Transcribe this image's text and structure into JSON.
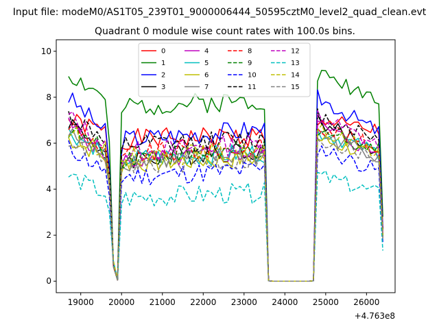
{
  "chart_data": {
    "type": "line",
    "suptitle": "Input file: modeM0/AS1T05_239T01_9000006444_50595cztM0_level2_quad_clean.evt",
    "title": "Quadrant 0 module wise count rates with 100.0s bins.",
    "xlabel": "",
    "ylabel": "",
    "x_offset_label": "+4.763e8",
    "xlim": [
      18400,
      26700
    ],
    "ylim": [
      -0.5,
      10.5
    ],
    "xticks": [
      19000,
      20000,
      21000,
      22000,
      23000,
      24000,
      25000,
      26000
    ],
    "xtick_labels": [
      "19000",
      "20000",
      "21000",
      "22000",
      "23000",
      "24000",
      "25000",
      "26000"
    ],
    "yticks": [
      0,
      2,
      4,
      6,
      8,
      10
    ],
    "ytick_labels": [
      "0",
      "2",
      "4",
      "6",
      "8",
      "10"
    ],
    "legend_position": "upper center",
    "legend_columns": 4,
    "bin_seconds": 100,
    "x": [
      18700,
      18800,
      18900,
      19000,
      19100,
      19200,
      19300,
      19400,
      19500,
      19600,
      19700,
      19800,
      19900,
      20000,
      20100,
      20200,
      20300,
      20400,
      20500,
      20600,
      20700,
      20800,
      20900,
      21000,
      21100,
      21200,
      21300,
      21400,
      21500,
      21600,
      21700,
      21800,
      21900,
      22000,
      22100,
      22200,
      22300,
      22400,
      22500,
      22600,
      22700,
      22800,
      22900,
      23000,
      23100,
      23200,
      23300,
      23400,
      23500,
      23600,
      23700,
      23800,
      23900,
      24000,
      24100,
      24200,
      24300,
      24400,
      24500,
      24600,
      24700,
      24800,
      24900,
      25000,
      25100,
      25200,
      25300,
      25400,
      25500,
      25600,
      25700,
      25800,
      25900,
      26000,
      26100,
      26200,
      26300,
      26400
    ],
    "series": [
      {
        "name": "0",
        "color": "#ff0000",
        "dash": "solid",
        "base": 6.5,
        "hi": 7.0,
        "seed": 1
      },
      {
        "name": "1",
        "color": "#008000",
        "dash": "solid",
        "base": 8.0,
        "hi": 9.0,
        "seed": 2
      },
      {
        "name": "2",
        "color": "#0000ff",
        "dash": "solid",
        "base": 6.5,
        "hi": 8.0,
        "seed": 3
      },
      {
        "name": "3",
        "color": "#000000",
        "dash": "solid",
        "base": 5.6,
        "hi": 7.0,
        "seed": 4
      },
      {
        "name": "4",
        "color": "#bf00bf",
        "dash": "solid",
        "base": 5.5,
        "hi": 6.8,
        "seed": 5
      },
      {
        "name": "5",
        "color": "#00bfbf",
        "dash": "solid",
        "base": 5.6,
        "hi": 6.5,
        "seed": 6
      },
      {
        "name": "6",
        "color": "#bfbf00",
        "dash": "solid",
        "base": 5.4,
        "hi": 6.2,
        "seed": 7
      },
      {
        "name": "7",
        "color": "#808080",
        "dash": "solid",
        "base": 5.5,
        "hi": 6.4,
        "seed": 8
      },
      {
        "name": "8",
        "color": "#ff0000",
        "dash": "dashed",
        "base": 5.8,
        "hi": 6.8,
        "seed": 9
      },
      {
        "name": "9",
        "color": "#008000",
        "dash": "dashed",
        "base": 5.7,
        "hi": 6.6,
        "seed": 10
      },
      {
        "name": "10",
        "color": "#0000ff",
        "dash": "dashed",
        "base": 4.8,
        "hi": 5.8,
        "seed": 11
      },
      {
        "name": "11",
        "color": "#000000",
        "dash": "dashed",
        "base": 6.2,
        "hi": 7.2,
        "seed": 12
      },
      {
        "name": "12",
        "color": "#bf00bf",
        "dash": "dashed",
        "base": 5.9,
        "hi": 7.2,
        "seed": 13
      },
      {
        "name": "13",
        "color": "#00bfbf",
        "dash": "dashed",
        "base": 3.8,
        "hi": 4.6,
        "seed": 14
      },
      {
        "name": "14",
        "color": "#bfbf00",
        "dash": "dashed",
        "base": 5.7,
        "hi": 6.5,
        "seed": 15
      },
      {
        "name": "15",
        "color": "#808080",
        "dash": "dashed",
        "base": 5.3,
        "hi": 6.2,
        "seed": 16
      }
    ]
  }
}
